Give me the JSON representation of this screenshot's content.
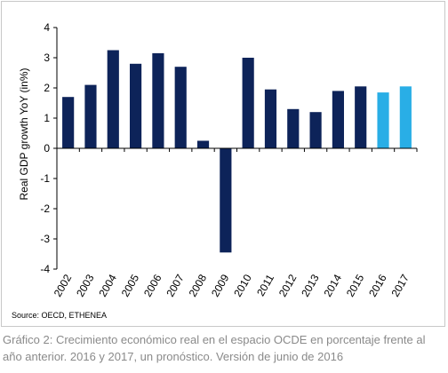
{
  "chart_data": {
    "type": "bar",
    "categories": [
      "2002",
      "2003",
      "2004",
      "2005",
      "2006",
      "2007",
      "2008",
      "2009",
      "2010",
      "2011",
      "2012",
      "2013",
      "2014",
      "2015",
      "2016",
      "2017"
    ],
    "values": [
      1.7,
      2.1,
      3.25,
      2.8,
      3.15,
      2.7,
      0.25,
      -3.45,
      3.0,
      1.95,
      1.3,
      1.2,
      1.9,
      2.05,
      1.85,
      2.05
    ],
    "forecast": [
      false,
      false,
      false,
      false,
      false,
      false,
      false,
      false,
      false,
      false,
      false,
      false,
      false,
      false,
      true,
      true
    ],
    "ylabel": "Real GDP growth YoY (in%)",
    "ylim": [
      -4,
      4
    ],
    "yticks": [
      -4,
      -3,
      -2,
      -1,
      0,
      1,
      2,
      3,
      4
    ],
    "grid": false,
    "colors": {
      "actual": "#0d2359",
      "forecast": "#29aee6"
    }
  },
  "source": "Source: OECD, ETHENEA",
  "caption": "Gráfico 2: Crecimiento económico real en el espacio OCDE en porcentaje frente al año anterior. 2016 y 2017, un pronóstico. Versión de junio de 2016"
}
